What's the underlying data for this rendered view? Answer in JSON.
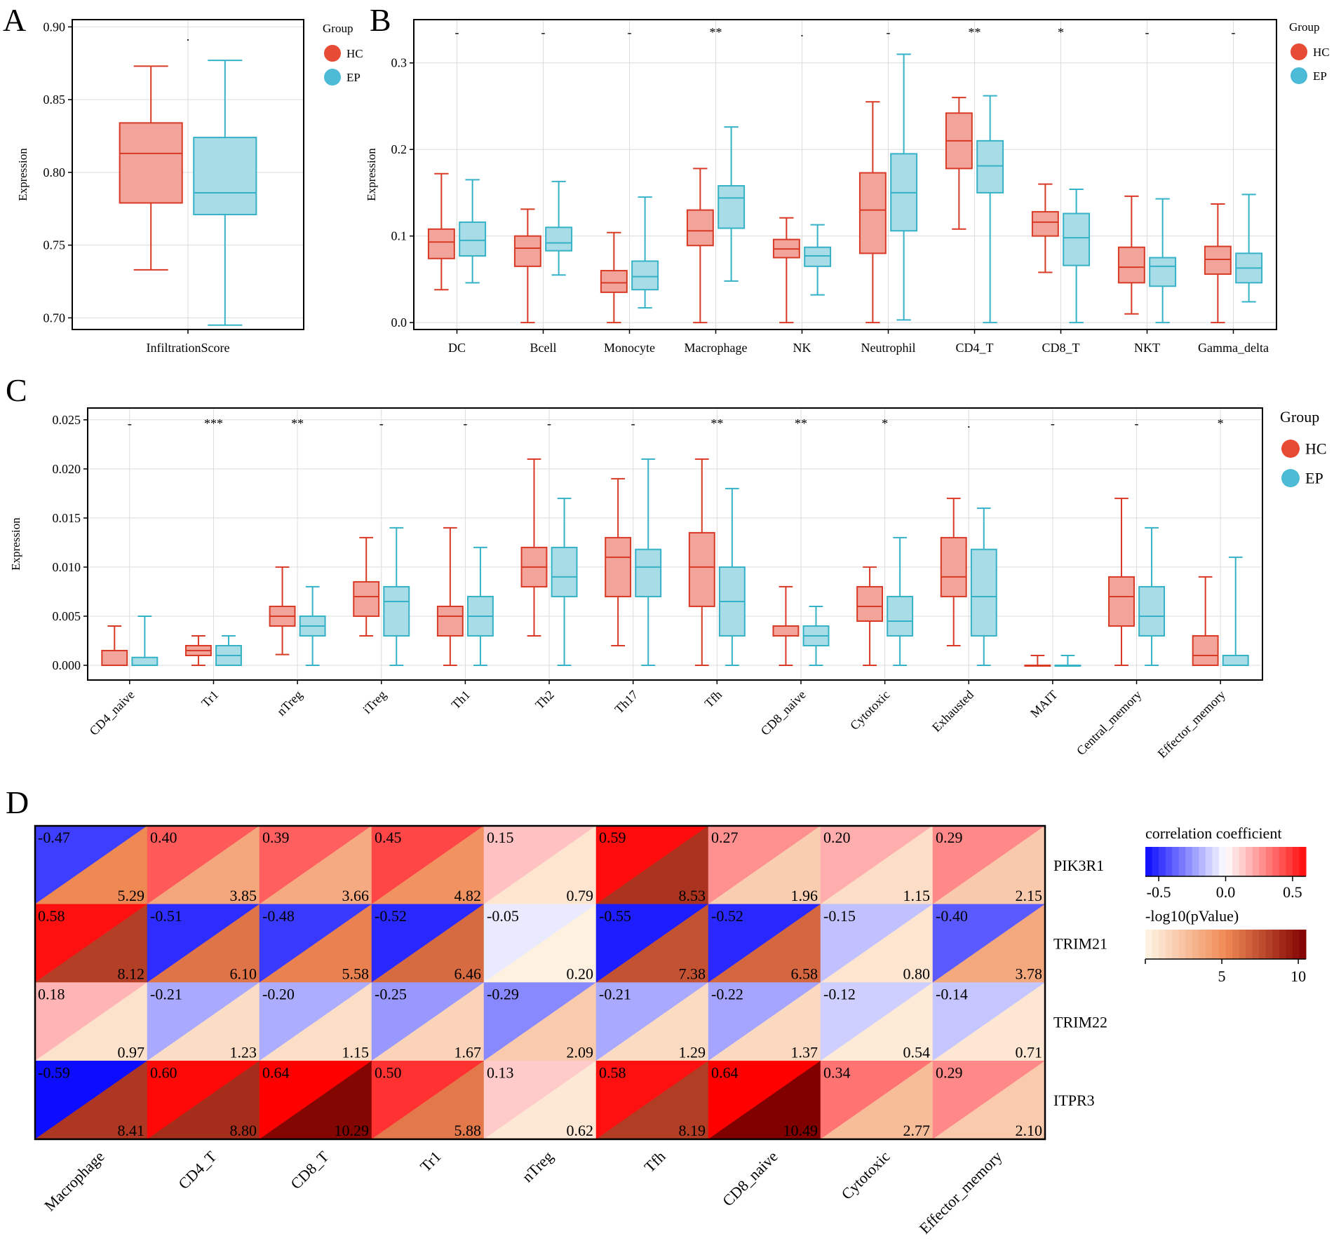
{
  "chart_data": [
    {
      "panel": "A",
      "type": "box",
      "ylabel": "Expression",
      "xlabel": "InfiltrationScore",
      "ylim": [
        0.692,
        0.905
      ],
      "yticks": [
        "0.70",
        "0.75",
        "0.80",
        "0.85",
        "0.90"
      ],
      "ytick_values": [
        0.7,
        0.75,
        0.8,
        0.85,
        0.9
      ],
      "legend": {
        "title": "Group",
        "items": [
          "HC",
          "EP"
        ]
      },
      "categories": [
        "InfiltrationScore"
      ],
      "significance": [
        "."
      ],
      "series": [
        {
          "name": "HC",
          "boxes": [
            [
              0.733,
              0.779,
              0.813,
              0.834,
              0.873
            ]
          ]
        },
        {
          "name": "EP",
          "boxes": [
            [
              0.695,
              0.771,
              0.786,
              0.824,
              0.877
            ]
          ]
        }
      ]
    },
    {
      "panel": "B",
      "type": "box",
      "ylabel": "Expression",
      "xlabel": "",
      "ylim": [
        -0.008,
        0.35
      ],
      "yticks": [
        "0.0",
        "0.1",
        "0.2",
        "0.3"
      ],
      "ytick_values": [
        0.0,
        0.1,
        0.2,
        0.3
      ],
      "legend": {
        "title": "Group",
        "items": [
          "HC",
          "EP"
        ]
      },
      "categories": [
        "DC",
        "Bcell",
        "Monocyte",
        "Macrophage",
        "NK",
        "Neutrophil",
        "CD4_T",
        "CD8_T",
        "NKT",
        "Gamma_delta"
      ],
      "significance": [
        "-",
        "-",
        "-",
        "**",
        ".",
        "-",
        "**",
        "*",
        "-",
        "-"
      ],
      "series": [
        {
          "name": "HC",
          "boxes": [
            [
              0.038,
              0.074,
              0.093,
              0.108,
              0.172
            ],
            [
              0.0,
              0.065,
              0.086,
              0.1,
              0.131
            ],
            [
              0.0,
              0.035,
              0.046,
              0.06,
              0.104
            ],
            [
              0.0,
              0.089,
              0.106,
              0.13,
              0.178
            ],
            [
              0.0,
              0.075,
              0.085,
              0.096,
              0.121
            ],
            [
              0.0,
              0.08,
              0.13,
              0.173,
              0.255
            ],
            [
              0.108,
              0.178,
              0.21,
              0.242,
              0.26
            ],
            [
              0.058,
              0.1,
              0.116,
              0.128,
              0.16
            ],
            [
              0.01,
              0.046,
              0.064,
              0.087,
              0.146
            ],
            [
              0.0,
              0.056,
              0.073,
              0.088,
              0.137
            ]
          ]
        },
        {
          "name": "EP",
          "boxes": [
            [
              0.046,
              0.077,
              0.095,
              0.116,
              0.165
            ],
            [
              0.055,
              0.083,
              0.092,
              0.11,
              0.163
            ],
            [
              0.017,
              0.038,
              0.053,
              0.071,
              0.145
            ],
            [
              0.048,
              0.109,
              0.144,
              0.158,
              0.226
            ],
            [
              0.032,
              0.065,
              0.077,
              0.087,
              0.113
            ],
            [
              0.003,
              0.106,
              0.15,
              0.195,
              0.31
            ],
            [
              0.0,
              0.15,
              0.181,
              0.21,
              0.262
            ],
            [
              0.0,
              0.066,
              0.098,
              0.126,
              0.154
            ],
            [
              0.0,
              0.042,
              0.065,
              0.075,
              0.143
            ],
            [
              0.024,
              0.046,
              0.063,
              0.08,
              0.148
            ]
          ]
        }
      ]
    },
    {
      "panel": "C",
      "type": "box",
      "ylabel": "Expression",
      "xlabel": "",
      "ylim": [
        -0.0015,
        0.0262
      ],
      "yticks": [
        "0.000",
        "0.005",
        "0.010",
        "0.015",
        "0.020",
        "0.025"
      ],
      "ytick_values": [
        0.0,
        0.005,
        0.01,
        0.015,
        0.02,
        0.025
      ],
      "legend": {
        "title": "Group",
        "items": [
          "HC",
          "EP"
        ]
      },
      "categories": [
        "CD4_naive",
        "Tr1",
        "nTreg",
        "iTreg",
        "Th1",
        "Th2",
        "Th17",
        "Tfh",
        "CD8_naive",
        "Cytotoxic",
        "Exhausted",
        "MAIT",
        "Central_memory",
        "Effector_memory"
      ],
      "significance": [
        "-",
        "***",
        "**",
        "-",
        "-",
        "-",
        "-",
        "**",
        "**",
        "*",
        ".",
        "-",
        "-",
        "*"
      ],
      "series": [
        {
          "name": "HC",
          "boxes": [
            [
              0.0,
              0.0,
              0.0,
              0.0015,
              0.004
            ],
            [
              0.0,
              0.001,
              0.0015,
              0.002,
              0.003
            ],
            [
              0.0011,
              0.004,
              0.005,
              0.006,
              0.01
            ],
            [
              0.003,
              0.005,
              0.007,
              0.0085,
              0.013
            ],
            [
              0.0,
              0.003,
              0.005,
              0.006,
              0.014
            ],
            [
              0.003,
              0.008,
              0.01,
              0.012,
              0.021
            ],
            [
              0.002,
              0.007,
              0.011,
              0.013,
              0.019
            ],
            [
              0.0,
              0.006,
              0.01,
              0.0135,
              0.021
            ],
            [
              0.0,
              0.003,
              0.003,
              0.004,
              0.008
            ],
            [
              0.0,
              0.0045,
              0.006,
              0.008,
              0.01
            ],
            [
              0.002,
              0.007,
              0.009,
              0.013,
              0.017
            ],
            [
              0.0,
              0.0,
              0.0,
              0.0,
              0.001
            ],
            [
              0.0,
              0.004,
              0.007,
              0.009,
              0.017
            ],
            [
              0.0,
              0.0,
              0.001,
              0.003,
              0.009
            ]
          ]
        },
        {
          "name": "EP",
          "boxes": [
            [
              0.0,
              0.0,
              0.0,
              0.0008,
              0.005
            ],
            [
              0.0,
              0.0,
              0.001,
              0.002,
              0.003
            ],
            [
              0.0,
              0.003,
              0.004,
              0.005,
              0.008
            ],
            [
              0.0,
              0.003,
              0.0065,
              0.008,
              0.014
            ],
            [
              0.0,
              0.003,
              0.005,
              0.007,
              0.012
            ],
            [
              0.0,
              0.007,
              0.009,
              0.012,
              0.017
            ],
            [
              0.0,
              0.007,
              0.01,
              0.0118,
              0.021
            ],
            [
              0.0,
              0.003,
              0.0065,
              0.01,
              0.018
            ],
            [
              0.0,
              0.002,
              0.003,
              0.004,
              0.006
            ],
            [
              0.0,
              0.003,
              0.0045,
              0.007,
              0.013
            ],
            [
              0.0,
              0.003,
              0.007,
              0.0118,
              0.016
            ],
            [
              0.0,
              0.0,
              0.0,
              0.0,
              0.001
            ],
            [
              0.0,
              0.003,
              0.005,
              0.008,
              0.014
            ],
            [
              0.0,
              0.0,
              0.0,
              0.001,
              0.011
            ]
          ]
        }
      ]
    },
    {
      "panel": "D",
      "type": "heatmap",
      "columns": [
        "Macrophage",
        "CD4_T",
        "CD8_T",
        "Tr1",
        "nTreg",
        "Tfh",
        "CD8_naive",
        "Cytotoxic",
        "Effector_memory"
      ],
      "rows": [
        "PIK3R1",
        "TRIM21",
        "TRIM22",
        "ITPR3"
      ],
      "correlation": [
        [
          "-0.47",
          "0.40",
          "0.39",
          "0.45",
          "0.15",
          "0.59",
          "0.27",
          "0.20",
          "0.29"
        ],
        [
          "0.58",
          "-0.51",
          "-0.48",
          "-0.52",
          "-0.05",
          "-0.55",
          "-0.52",
          "-0.15",
          "-0.40"
        ],
        [
          "0.18",
          "-0.21",
          "-0.20",
          "-0.25",
          "-0.29",
          "-0.21",
          "-0.22",
          "-0.12",
          "-0.14"
        ],
        [
          "-0.59",
          "0.60",
          "0.64",
          "0.50",
          "0.13",
          "0.58",
          "0.64",
          "0.34",
          "0.29"
        ]
      ],
      "neg_log10_p": [
        [
          "5.29",
          "3.85",
          "3.66",
          "4.82",
          "0.79",
          "8.53",
          "1.96",
          "1.15",
          "2.15"
        ],
        [
          "8.12",
          "6.10",
          "5.58",
          "6.46",
          "0.20",
          "7.38",
          "6.58",
          "0.80",
          "3.78"
        ],
        [
          "0.97",
          "1.23",
          "1.15",
          "1.67",
          "2.09",
          "1.29",
          "1.37",
          "0.54",
          "0.71"
        ],
        [
          "8.41",
          "8.80",
          "10.29",
          "5.88",
          "0.62",
          "8.19",
          "10.49",
          "2.77",
          "2.10"
        ]
      ],
      "legend_correlation": {
        "title": "correlation coefficient",
        "ticks": [
          "-0.5",
          "0.0",
          "0.5"
        ],
        "range": [
          -0.6,
          0.6
        ]
      },
      "legend_pvalue": {
        "title": "-log10(pValue)",
        "ticks": [
          "5",
          "10"
        ],
        "range": [
          0,
          10.5
        ]
      }
    }
  ],
  "panel_labels": {
    "a": "A",
    "b": "B",
    "c": "C",
    "d": "D"
  },
  "colors": {
    "hc_fill": "#f2a49a",
    "hc_line": "#d83a26",
    "ep_fill": "#a8dce6",
    "ep_line": "#35b2c7",
    "hc_dot": "#e64b35",
    "ep_dot": "#4dbbd5",
    "grid": "#dcdcdc",
    "corr_neg": "#0000ff",
    "corr_zero": "#ffffff",
    "corr_pos": "#ff0000",
    "p_low": "#fff5e6",
    "p_mid": "#f08a55",
    "p_high": "#800000"
  }
}
